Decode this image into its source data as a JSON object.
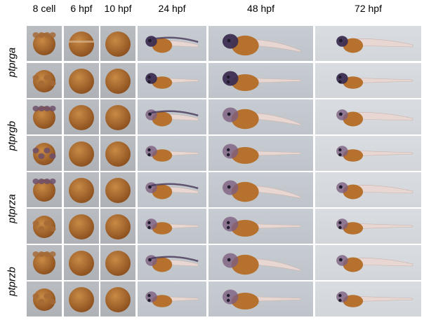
{
  "column_headers": [
    "8 cell",
    "6 hpf",
    "10 hpf",
    "24 hpf",
    "48 hpf",
    "72 hpf"
  ],
  "gene_labels": [
    "ptprga",
    "ptprgb",
    "ptprza",
    "ptprzb"
  ],
  "colors": {
    "yolk": "#b5712d",
    "yolk_dark": "#8e5220",
    "stain": "#3d2e52",
    "tissue": "#e7d6d1",
    "background": "#c4c9cf"
  }
}
